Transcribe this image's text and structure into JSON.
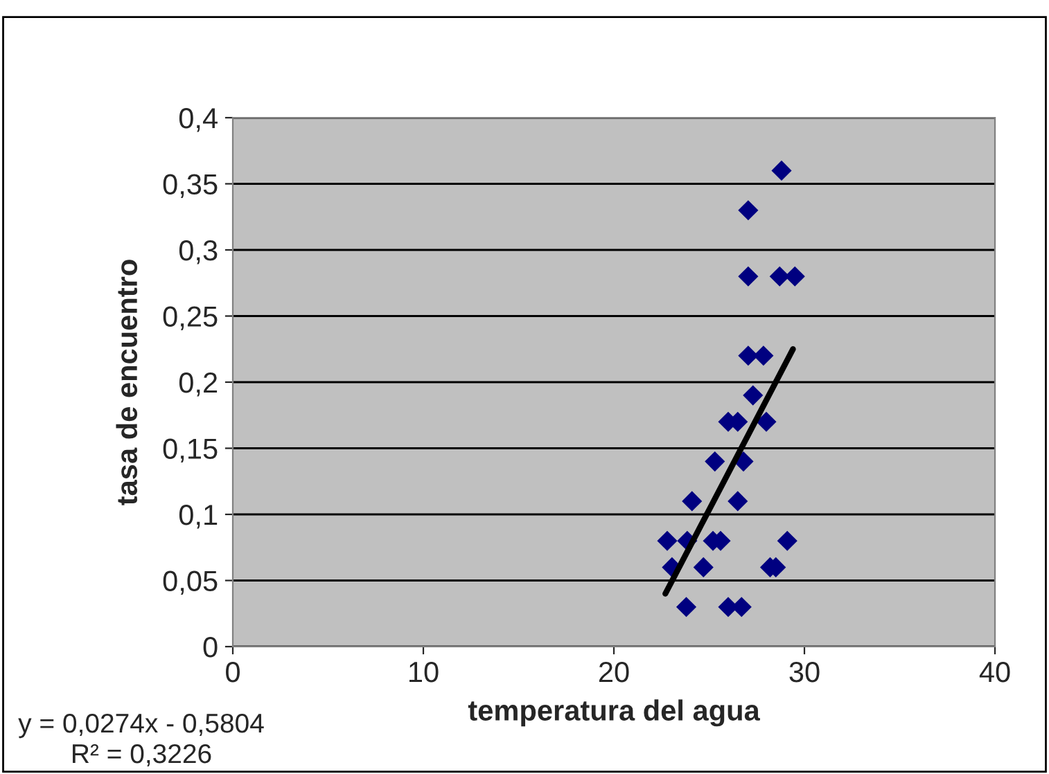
{
  "chart_data": {
    "type": "scatter",
    "xlabel": "temperatura del agua",
    "ylabel": "tasa de encuentro",
    "xlim": [
      0,
      40
    ],
    "xticks": [
      0,
      10,
      20,
      30,
      40
    ],
    "ylim": [
      0,
      0.4
    ],
    "yticks": [
      {
        "value": 0,
        "label": "0"
      },
      {
        "value": 0.05,
        "label": "0,05"
      },
      {
        "value": 0.1,
        "label": "0,1"
      },
      {
        "value": 0.15,
        "label": "0,15"
      },
      {
        "value": 0.2,
        "label": "0,2"
      },
      {
        "value": 0.25,
        "label": "0,25"
      },
      {
        "value": 0.3,
        "label": "0,3"
      },
      {
        "value": 0.35,
        "label": "0,35"
      },
      {
        "value": 0.4,
        "label": "0,4"
      }
    ],
    "grid": "y",
    "legend": false,
    "series": [
      {
        "color": "#000080",
        "marker": "diamond",
        "x": [
          28.8,
          27.05,
          27.05,
          28.7,
          29.5,
          27.05,
          27.85,
          27.3,
          26.0,
          26.5,
          28.0,
          25.3,
          26.8,
          24.1,
          26.5,
          22.8,
          23.85,
          25.2,
          25.6,
          29.1,
          23.05,
          24.7,
          28.2,
          28.5,
          23.8,
          26.0,
          26.7
        ],
        "values": [
          0.36,
          0.33,
          0.28,
          0.28,
          0.28,
          0.22,
          0.22,
          0.19,
          0.17,
          0.17,
          0.17,
          0.14,
          0.14,
          0.11,
          0.11,
          0.08,
          0.08,
          0.08,
          0.08,
          0.08,
          0.06,
          0.06,
          0.06,
          0.06,
          0.03,
          0.03,
          0.03
        ]
      },
      {
        "type": "line",
        "color": "#000000",
        "x": [
          22.7,
          29.4
        ],
        "values": [
          0.04,
          0.225
        ]
      }
    ],
    "annotations": [
      "y = 0,0274x - 0,5804",
      "R² = 0,3226"
    ]
  }
}
